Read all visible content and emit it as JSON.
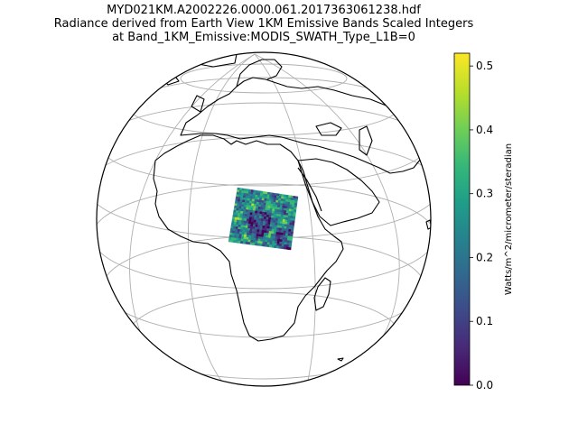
{
  "title": {
    "line1": "MYD021KM.A2002226.0000.061.2017363061238.hdf",
    "line2": "Radiance derived from Earth View 1KM Emissive Bands Scaled Integers",
    "line3": "at Band_1KM_Emissive:MODIS_SWATH_Type_L1B=0"
  },
  "colorbar": {
    "label": "Watts/m^2/micrometer/steradian",
    "min": 0.0,
    "max": 0.52,
    "ticks": [
      "0.0",
      "0.1",
      "0.2",
      "0.3",
      "0.4",
      "0.5"
    ],
    "colormap": "viridis",
    "colors": [
      "#440154",
      "#482878",
      "#3e4989",
      "#31688e",
      "#26828e",
      "#1f9e89",
      "#35b779",
      "#6ece58",
      "#b5de2b",
      "#fde725"
    ]
  },
  "map": {
    "projection": "orthographic",
    "center": {
      "lon": 20,
      "lat": 20
    },
    "gridlines": true,
    "coastlines": true,
    "swath_region": "northeast Africa / Sudan"
  }
}
